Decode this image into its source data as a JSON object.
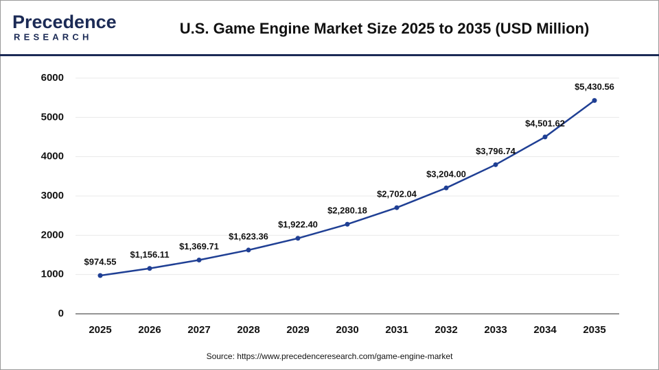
{
  "logo": {
    "name": "Precedence",
    "tagline": "RESEARCH"
  },
  "source": "Source: https://www.precedenceresearch.com/game-engine-market",
  "chart_data": {
    "type": "line",
    "title": "U.S. Game Engine Market Size 2025 to 2035 (USD Million)",
    "categories": [
      "2025",
      "2026",
      "2027",
      "2028",
      "2029",
      "2030",
      "2031",
      "2032",
      "2033",
      "2034",
      "2035"
    ],
    "values": [
      974.55,
      1156.11,
      1369.71,
      1623.36,
      1922.4,
      2280.18,
      2702.04,
      3204.0,
      3796.74,
      4501.62,
      5430.56
    ],
    "value_labels": [
      "$974.55",
      "$1,156.11",
      "$1,369.71",
      "$1,623.36",
      "$1,922.40",
      "$2,280.18",
      "$2,702.04",
      "$3,204.00",
      "$3,796.74",
      "$4,501.62",
      "$5,430.56"
    ],
    "color": "#1f3f94",
    "ylim": [
      0,
      6000
    ],
    "yticks": [
      0,
      1000,
      2000,
      3000,
      4000,
      5000,
      6000
    ],
    "grid": true
  }
}
